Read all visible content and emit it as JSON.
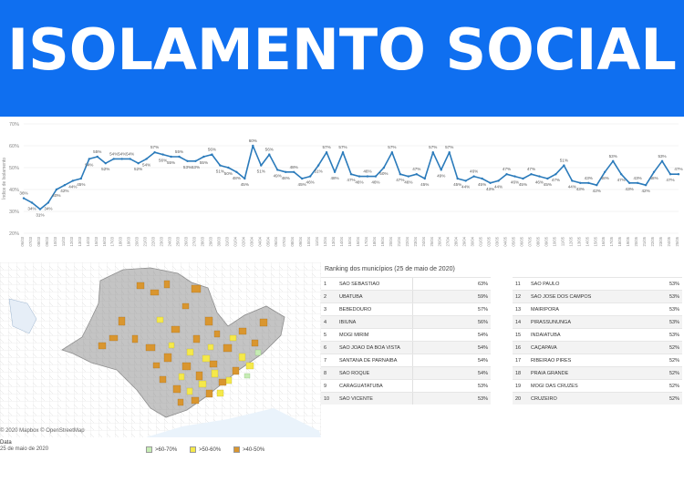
{
  "banner": {
    "title": "ISOLAMENTO SOCIAL"
  },
  "chart_data": {
    "type": "line",
    "ylabel": "Índice de Isolamento",
    "ylim": [
      20,
      70
    ],
    "y_ticks": [
      "70%",
      "60%",
      "50%",
      "40%",
      "30%",
      "20%"
    ],
    "grid": true,
    "color": "#2b7bbb",
    "x": [
      "06/03",
      "07/03",
      "08/03",
      "09/03",
      "10/03",
      "11/03",
      "12/03",
      "13/03",
      "14/03",
      "15/03",
      "16/03",
      "17/03",
      "18/03",
      "19/03",
      "20/03",
      "21/03",
      "22/03",
      "23/03",
      "24/03",
      "25/03",
      "26/03",
      "27/03",
      "28/03",
      "29/03",
      "30/03",
      "31/03",
      "01/04",
      "02/04",
      "03/04",
      "04/04",
      "05/04",
      "06/04",
      "07/04",
      "08/04",
      "09/04",
      "10/04",
      "11/04",
      "12/04",
      "13/04",
      "14/04",
      "15/04",
      "16/04",
      "17/04",
      "18/04",
      "19/04",
      "20/04",
      "21/04",
      "22/04",
      "23/04",
      "24/04",
      "25/04",
      "26/04",
      "27/04",
      "28/04",
      "29/04",
      "30/04",
      "01/05",
      "02/05",
      "03/05",
      "04/05",
      "05/05",
      "06/05",
      "07/05",
      "08/05",
      "09/05",
      "10/05",
      "11/05",
      "12/05",
      "13/05",
      "14/05",
      "15/05",
      "16/05",
      "17/05",
      "18/05",
      "19/05",
      "20/05",
      "21/05",
      "22/05",
      "23/05",
      "24/05",
      "25/05"
    ],
    "values": [
      36,
      34,
      31,
      34,
      40,
      42,
      44,
      45,
      54,
      55,
      52,
      54,
      54,
      54,
      52,
      54,
      57,
      56,
      55,
      55,
      53,
      53,
      55,
      56,
      51,
      50,
      48,
      45,
      60,
      51,
      56,
      49,
      48,
      48,
      45,
      46,
      51,
      57,
      48,
      57,
      47,
      46,
      46,
      46,
      50,
      57,
      47,
      46,
      47,
      45,
      57,
      49,
      57,
      45,
      44,
      46,
      45,
      43,
      44,
      47,
      46,
      45,
      47,
      46,
      45,
      47,
      51,
      44,
      43,
      43,
      42,
      48,
      53,
      47,
      43,
      43,
      42,
      48,
      53,
      47,
      47
    ],
    "point_labels": [
      36,
      34,
      31,
      34,
      40,
      42,
      44,
      45,
      54,
      55,
      52,
      54,
      54,
      54,
      52,
      54,
      57,
      56,
      55,
      55,
      53,
      53,
      55,
      56,
      51,
      50,
      48,
      45,
      60,
      51,
      56,
      49,
      48,
      48,
      45,
      46,
      51,
      57,
      48,
      57,
      47,
      46,
      46,
      46,
      50,
      57,
      47,
      46,
      47,
      45,
      57,
      49,
      57,
      45,
      44,
      46,
      45,
      43,
      44,
      47,
      46,
      45,
      47,
      46,
      45,
      47,
      51,
      44,
      43,
      43,
      42,
      48,
      53,
      47,
      43,
      43,
      42,
      48,
      53,
      47,
      47
    ]
  },
  "map": {
    "attribution": "© 2020 Mapbox © OpenStreetMap",
    "date_label": "Data",
    "date_value": "25 de maio de 2020",
    "legend": [
      {
        "label": ">60-70%",
        "color": "#c6ecb4"
      },
      {
        "label": ">50-60%",
        "color": "#f5e94a"
      },
      {
        "label": ">40-50%",
        "color": "#d9962f"
      }
    ]
  },
  "ranking": {
    "title": "Ranking dos municípios (25 de maio de 2020)",
    "left": [
      {
        "rank": "1",
        "name": "SÃO SEBASTIÃO",
        "pct": "63%"
      },
      {
        "rank": "2",
        "name": "UBATUBA",
        "pct": "59%"
      },
      {
        "rank": "3",
        "name": "BEBEDOURO",
        "pct": "57%"
      },
      {
        "rank": "4",
        "name": "IBIÚNA",
        "pct": "56%"
      },
      {
        "rank": "5",
        "name": "MOGI MIRIM",
        "pct": "54%"
      },
      {
        "rank": "6",
        "name": "SÃO JOÃO DA BOA VISTA",
        "pct": "54%"
      },
      {
        "rank": "7",
        "name": "SANTANA DE PARNAÍBA",
        "pct": "54%"
      },
      {
        "rank": "8",
        "name": "SÃO ROQUE",
        "pct": "54%"
      },
      {
        "rank": "9",
        "name": "CARAGUATATUBA",
        "pct": "53%"
      },
      {
        "rank": "10",
        "name": "SÃO VICENTE",
        "pct": "53%"
      }
    ],
    "right": [
      {
        "rank": "11",
        "name": "SÃO PAULO",
        "pct": "53%"
      },
      {
        "rank": "12",
        "name": "SÃO JOSÉ DOS CAMPOS",
        "pct": "53%"
      },
      {
        "rank": "13",
        "name": "MAIRIPORÃ",
        "pct": "53%"
      },
      {
        "rank": "14",
        "name": "PIRASSUNUNGA",
        "pct": "53%"
      },
      {
        "rank": "15",
        "name": "INDAIATUBA",
        "pct": "53%"
      },
      {
        "rank": "16",
        "name": "CAÇAPAVA",
        "pct": "52%"
      },
      {
        "rank": "17",
        "name": "RIBEIRÃO PIRES",
        "pct": "52%"
      },
      {
        "rank": "18",
        "name": "PRAIA GRANDE",
        "pct": "52%"
      },
      {
        "rank": "19",
        "name": "MOGI DAS CRUZES",
        "pct": "52%"
      },
      {
        "rank": "20",
        "name": "CRUZEIRO",
        "pct": "52%"
      }
    ]
  }
}
